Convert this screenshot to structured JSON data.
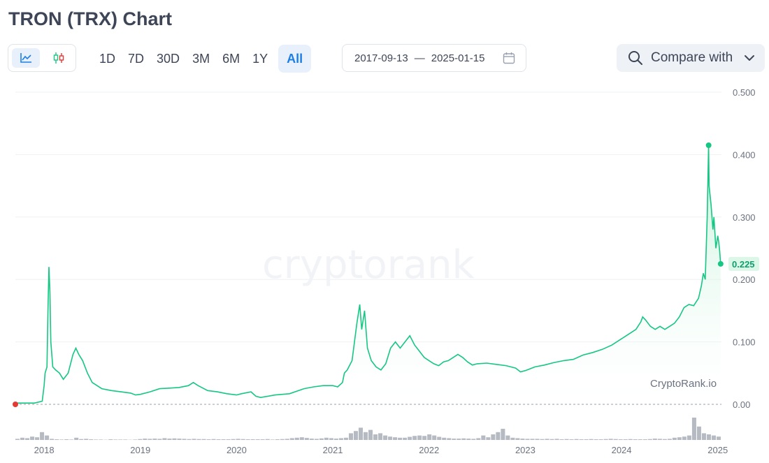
{
  "page": {
    "title": "TRON (TRX) Chart"
  },
  "chart_type_toggle": {
    "line_icon": "line-chart-icon",
    "candle_icon": "candlestick-icon",
    "active": "line"
  },
  "ranges": [
    {
      "label": "1D",
      "active": false
    },
    {
      "label": "7D",
      "active": false
    },
    {
      "label": "30D",
      "active": false
    },
    {
      "label": "3M",
      "active": false
    },
    {
      "label": "6M",
      "active": false
    },
    {
      "label": "1Y",
      "active": false
    },
    {
      "label": "All",
      "active": true
    }
  ],
  "date_range": {
    "start": "2017-09-13",
    "separator": "—",
    "end": "2025-01-15",
    "icon": "calendar-icon"
  },
  "compare": {
    "label": "Compare with",
    "search_icon": "search-icon",
    "chevron_icon": "chevron-down-icon"
  },
  "watermark": "cryptorank",
  "credit": "CryptoRank.io",
  "colors": {
    "line": "#16c784",
    "area_top": "#b8f0d3",
    "peak": "#16c784",
    "start_dot": "#e53935",
    "volume": "#b6bac3",
    "grid": "#eef0f3",
    "active_blue": "#1d7fe6"
  },
  "chart_data": {
    "type": "area",
    "x_range": [
      "2017-09-13",
      "2025-01-15"
    ],
    "y_ticks": [
      {
        "v": 0.5,
        "label": "0.500"
      },
      {
        "v": 0.4,
        "label": "0.400"
      },
      {
        "v": 0.3,
        "label": "0.300"
      },
      {
        "v": 0.2,
        "label": "0.200"
      },
      {
        "v": 0.1,
        "label": "0.100"
      },
      {
        "v": 0.0,
        "label": "0.00"
      }
    ],
    "ylim": [
      0,
      0.5
    ],
    "x_ticks": [
      "2018",
      "2019",
      "2020",
      "2021",
      "2022",
      "2023",
      "2024",
      "2025"
    ],
    "current_price": "0.225",
    "current_value": 0.225,
    "peak_value": 0.415,
    "series": [
      {
        "points": [
          [
            2017.7,
            0.002
          ],
          [
            2017.9,
            0.002
          ],
          [
            2017.98,
            0.005
          ],
          [
            2018.0,
            0.03
          ],
          [
            2018.01,
            0.05
          ],
          [
            2018.03,
            0.06
          ],
          [
            2018.04,
            0.15
          ],
          [
            2018.05,
            0.22
          ],
          [
            2018.06,
            0.18
          ],
          [
            2018.07,
            0.1
          ],
          [
            2018.09,
            0.06
          ],
          [
            2018.12,
            0.055
          ],
          [
            2018.16,
            0.05
          ],
          [
            2018.2,
            0.04
          ],
          [
            2018.25,
            0.05
          ],
          [
            2018.3,
            0.08
          ],
          [
            2018.33,
            0.09
          ],
          [
            2018.36,
            0.08
          ],
          [
            2018.4,
            0.07
          ],
          [
            2018.45,
            0.05
          ],
          [
            2018.5,
            0.035
          ],
          [
            2018.6,
            0.025
          ],
          [
            2018.7,
            0.022
          ],
          [
            2018.8,
            0.02
          ],
          [
            2018.9,
            0.018
          ],
          [
            2018.95,
            0.015
          ],
          [
            2019.0,
            0.016
          ],
          [
            2019.1,
            0.02
          ],
          [
            2019.2,
            0.025
          ],
          [
            2019.3,
            0.026
          ],
          [
            2019.4,
            0.027
          ],
          [
            2019.5,
            0.03
          ],
          [
            2019.55,
            0.035
          ],
          [
            2019.6,
            0.03
          ],
          [
            2019.7,
            0.022
          ],
          [
            2019.8,
            0.02
          ],
          [
            2019.9,
            0.017
          ],
          [
            2020.0,
            0.015
          ],
          [
            2020.05,
            0.017
          ],
          [
            2020.15,
            0.02
          ],
          [
            2020.2,
            0.013
          ],
          [
            2020.25,
            0.011
          ],
          [
            2020.4,
            0.015
          ],
          [
            2020.55,
            0.017
          ],
          [
            2020.7,
            0.025
          ],
          [
            2020.8,
            0.028
          ],
          [
            2020.9,
            0.03
          ],
          [
            2021.0,
            0.03
          ],
          [
            2021.05,
            0.028
          ],
          [
            2021.1,
            0.035
          ],
          [
            2021.12,
            0.05
          ],
          [
            2021.15,
            0.055
          ],
          [
            2021.2,
            0.07
          ],
          [
            2021.25,
            0.13
          ],
          [
            2021.28,
            0.16
          ],
          [
            2021.3,
            0.12
          ],
          [
            2021.33,
            0.15
          ],
          [
            2021.36,
            0.09
          ],
          [
            2021.4,
            0.07
          ],
          [
            2021.45,
            0.06
          ],
          [
            2021.5,
            0.055
          ],
          [
            2021.55,
            0.065
          ],
          [
            2021.6,
            0.09
          ],
          [
            2021.65,
            0.1
          ],
          [
            2021.7,
            0.09
          ],
          [
            2021.75,
            0.1
          ],
          [
            2021.8,
            0.11
          ],
          [
            2021.85,
            0.095
          ],
          [
            2021.9,
            0.085
          ],
          [
            2021.95,
            0.075
          ],
          [
            2022.0,
            0.07
          ],
          [
            2022.05,
            0.065
          ],
          [
            2022.1,
            0.062
          ],
          [
            2022.15,
            0.068
          ],
          [
            2022.2,
            0.07
          ],
          [
            2022.25,
            0.075
          ],
          [
            2022.3,
            0.08
          ],
          [
            2022.35,
            0.075
          ],
          [
            2022.4,
            0.068
          ],
          [
            2022.45,
            0.063
          ],
          [
            2022.5,
            0.065
          ],
          [
            2022.6,
            0.066
          ],
          [
            2022.7,
            0.064
          ],
          [
            2022.8,
            0.062
          ],
          [
            2022.9,
            0.058
          ],
          [
            2022.95,
            0.052
          ],
          [
            2023.0,
            0.054
          ],
          [
            2023.1,
            0.06
          ],
          [
            2023.2,
            0.063
          ],
          [
            2023.3,
            0.067
          ],
          [
            2023.4,
            0.07
          ],
          [
            2023.5,
            0.072
          ],
          [
            2023.6,
            0.079
          ],
          [
            2023.7,
            0.083
          ],
          [
            2023.8,
            0.088
          ],
          [
            2023.9,
            0.095
          ],
          [
            2024.0,
            0.105
          ],
          [
            2024.05,
            0.11
          ],
          [
            2024.1,
            0.115
          ],
          [
            2024.15,
            0.12
          ],
          [
            2024.2,
            0.132
          ],
          [
            2024.22,
            0.14
          ],
          [
            2024.25,
            0.135
          ],
          [
            2024.3,
            0.125
          ],
          [
            2024.35,
            0.12
          ],
          [
            2024.4,
            0.125
          ],
          [
            2024.45,
            0.12
          ],
          [
            2024.5,
            0.125
          ],
          [
            2024.55,
            0.13
          ],
          [
            2024.6,
            0.14
          ],
          [
            2024.65,
            0.155
          ],
          [
            2024.7,
            0.16
          ],
          [
            2024.75,
            0.158
          ],
          [
            2024.8,
            0.17
          ],
          [
            2024.83,
            0.19
          ],
          [
            2024.85,
            0.21
          ],
          [
            2024.87,
            0.2
          ],
          [
            2024.89,
            0.3
          ],
          [
            2024.905,
            0.415
          ],
          [
            2024.91,
            0.35
          ],
          [
            2024.93,
            0.32
          ],
          [
            2024.95,
            0.28
          ],
          [
            2024.96,
            0.3
          ],
          [
            2024.98,
            0.25
          ],
          [
            2025.0,
            0.27
          ],
          [
            2025.01,
            0.26
          ],
          [
            2025.02,
            0.245
          ],
          [
            2025.03,
            0.225
          ]
        ]
      }
    ],
    "volume": [
      0.05,
      0.1,
      0.08,
      0.15,
      0.12,
      0.35,
      0.2,
      0.05,
      0.03,
      0.02,
      0.03,
      0.02,
      0.1,
      0.04,
      0.05,
      0.03,
      0.02,
      0.02,
      0.01,
      0.03,
      0.02,
      0.02,
      0.02,
      0.01,
      0.02,
      0.04,
      0.06,
      0.05,
      0.06,
      0.05,
      0.08,
      0.06,
      0.07,
      0.06,
      0.05,
      0.04,
      0.05,
      0.04,
      0.04,
      0.03,
      0.04,
      0.03,
      0.03,
      0.03,
      0.04,
      0.05,
      0.04,
      0.03,
      0.03,
      0.03,
      0.03,
      0.04,
      0.02,
      0.03,
      0.04,
      0.05,
      0.08,
      0.1,
      0.12,
      0.09,
      0.06,
      0.05,
      0.07,
      0.1,
      0.08,
      0.06,
      0.08,
      0.1,
      0.3,
      0.4,
      0.55,
      0.35,
      0.45,
      0.25,
      0.3,
      0.2,
      0.15,
      0.12,
      0.1,
      0.1,
      0.14,
      0.18,
      0.2,
      0.18,
      0.25,
      0.2,
      0.14,
      0.1,
      0.08,
      0.06,
      0.06,
      0.07,
      0.06,
      0.05,
      0.08,
      0.2,
      0.12,
      0.25,
      0.35,
      0.5,
      0.2,
      0.1,
      0.08,
      0.06,
      0.05,
      0.05,
      0.05,
      0.04,
      0.05,
      0.04,
      0.05,
      0.03,
      0.04,
      0.03,
      0.04,
      0.03,
      0.03,
      0.04,
      0.03,
      0.03,
      0.04,
      0.05,
      0.04,
      0.03,
      0.03,
      0.04,
      0.03,
      0.03,
      0.03,
      0.04,
      0.06,
      0.05,
      0.04,
      0.05,
      0.1,
      0.12,
      0.15,
      0.2,
      1.0,
      0.6,
      0.3,
      0.25,
      0.2,
      0.15
    ]
  }
}
